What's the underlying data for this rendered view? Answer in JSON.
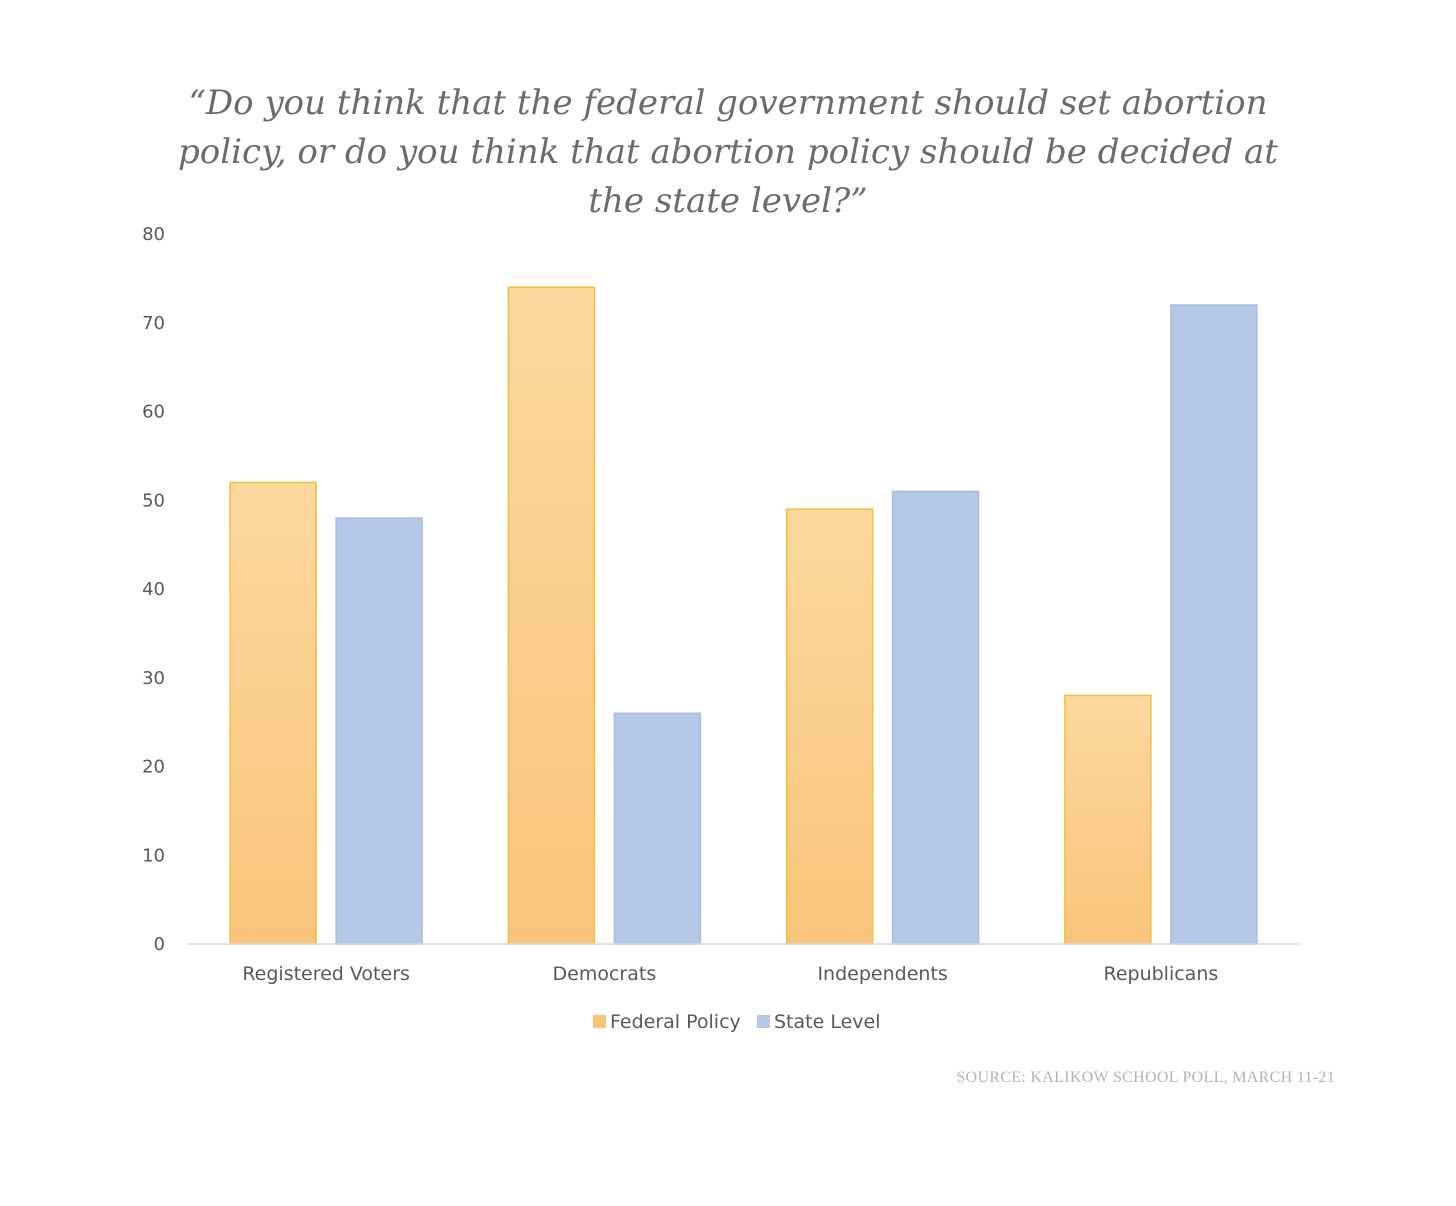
{
  "chart_data": {
    "type": "bar",
    "title_lines": [
      "“Do you think that the federal government should set abortion",
      "policy, or do you think that abortion policy should be decided at",
      "the state level?”"
    ],
    "categories": [
      "Registered Voters",
      "Democrats",
      "Independents",
      "Republicans"
    ],
    "series": [
      {
        "name": "Federal Policy",
        "values": [
          52,
          74,
          49,
          28
        ],
        "color": "#f7c47a",
        "color_top": "#fdd89f",
        "border": "#f5bd3c"
      },
      {
        "name": "State Level",
        "values": [
          48,
          26,
          51,
          72
        ],
        "color": "#b4c7e7",
        "color_top": "#b4c7e7",
        "border": "#a9bde2"
      }
    ],
    "y_ticks": [
      "0",
      "10",
      "20",
      "30",
      "40",
      "50",
      "60",
      "70",
      "80"
    ],
    "ylim": [
      0,
      80
    ],
    "grid": false,
    "legend_position": "bottom",
    "source": "SOURCE: KALIKOW SCHOOL POLL, MARCH 11-21"
  }
}
